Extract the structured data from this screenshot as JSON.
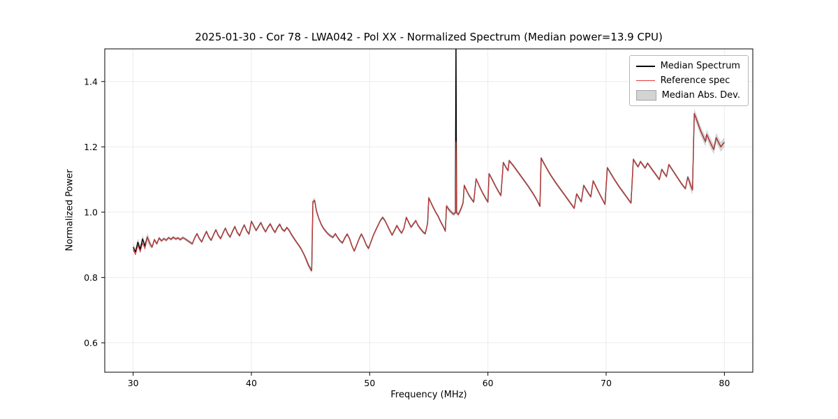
{
  "chart_data": {
    "type": "line",
    "title": "2025-01-30 - Cor 78 - LWA042 - Pol XX - Normalized Spectrum (Median power=13.9 CPU)",
    "xlabel": "Frequency (MHz)",
    "ylabel": "Normalized Power",
    "xlim": [
      27.6,
      82.4
    ],
    "ylim": [
      0.51,
      1.5
    ],
    "x_ticks": [
      30,
      40,
      50,
      60,
      70,
      80
    ],
    "x_tick_labels": [
      "30",
      "40",
      "50",
      "60",
      "70",
      "80"
    ],
    "y_ticks": [
      0.6,
      0.8,
      1.0,
      1.2,
      1.4
    ],
    "y_tick_labels": [
      "0.6",
      "0.8",
      "1.0",
      "1.2",
      "1.4"
    ],
    "grid": true,
    "legend": {
      "position": "upper right",
      "entries": [
        {
          "label": "Median Spectrum",
          "color": "#000000",
          "type": "line",
          "lw": 2
        },
        {
          "label": "Reference spec",
          "color": "#e03a3a",
          "type": "line",
          "lw": 1.5
        },
        {
          "label": "Median Abs. Dev.",
          "color": "#d3d3d3",
          "type": "patch",
          "lw": 0
        }
      ]
    },
    "series": {
      "median_points": [
        [
          30.0,
          0.893
        ],
        [
          30.2,
          0.878
        ],
        [
          30.4,
          0.908
        ],
        [
          30.6,
          0.886
        ],
        [
          30.8,
          0.918
        ],
        [
          31.0,
          0.896
        ],
        [
          31.2,
          0.924
        ],
        [
          31.4,
          0.905
        ],
        [
          31.6,
          0.893
        ],
        [
          31.8,
          0.916
        ],
        [
          32.0,
          0.903
        ],
        [
          32.2,
          0.921
        ],
        [
          32.4,
          0.912
        ],
        [
          32.6,
          0.919
        ],
        [
          32.8,
          0.914
        ],
        [
          33.0,
          0.922
        ],
        [
          33.2,
          0.917
        ],
        [
          33.4,
          0.923
        ],
        [
          33.6,
          0.918
        ],
        [
          33.8,
          0.921
        ],
        [
          34.0,
          0.916
        ],
        [
          34.2,
          0.922
        ],
        [
          34.4,
          0.918
        ],
        [
          34.6,
          0.913
        ],
        [
          34.8,
          0.908
        ],
        [
          35.0,
          0.903
        ],
        [
          35.2,
          0.921
        ],
        [
          35.4,
          0.934
        ],
        [
          35.6,
          0.919
        ],
        [
          35.8,
          0.909
        ],
        [
          36.0,
          0.926
        ],
        [
          36.2,
          0.941
        ],
        [
          36.4,
          0.924
        ],
        [
          36.6,
          0.914
        ],
        [
          36.8,
          0.931
        ],
        [
          37.0,
          0.946
        ],
        [
          37.2,
          0.929
        ],
        [
          37.4,
          0.919
        ],
        [
          37.6,
          0.936
        ],
        [
          37.8,
          0.951
        ],
        [
          38.0,
          0.934
        ],
        [
          38.2,
          0.924
        ],
        [
          38.4,
          0.941
        ],
        [
          38.6,
          0.956
        ],
        [
          38.8,
          0.938
        ],
        [
          39.0,
          0.928
        ],
        [
          39.2,
          0.946
        ],
        [
          39.4,
          0.961
        ],
        [
          39.6,
          0.943
        ],
        [
          39.8,
          0.933
        ],
        [
          40.0,
          0.972
        ],
        [
          40.2,
          0.958
        ],
        [
          40.4,
          0.944
        ],
        [
          40.6,
          0.956
        ],
        [
          40.8,
          0.968
        ],
        [
          41.0,
          0.952
        ],
        [
          41.2,
          0.94
        ],
        [
          41.4,
          0.954
        ],
        [
          41.6,
          0.964
        ],
        [
          41.8,
          0.949
        ],
        [
          42.0,
          0.938
        ],
        [
          42.2,
          0.953
        ],
        [
          42.4,
          0.963
        ],
        [
          42.6,
          0.948
        ],
        [
          42.8,
          0.942
        ],
        [
          43.0,
          0.953
        ],
        [
          43.2,
          0.944
        ],
        [
          43.4,
          0.931
        ],
        [
          43.6,
          0.92
        ],
        [
          43.8,
          0.909
        ],
        [
          44.0,
          0.899
        ],
        [
          44.2,
          0.888
        ],
        [
          44.4,
          0.874
        ],
        [
          44.6,
          0.858
        ],
        [
          44.8,
          0.84
        ],
        [
          45.0,
          0.826
        ],
        [
          45.1,
          0.821
        ],
        [
          45.2,
          1.032
        ],
        [
          45.35,
          1.036
        ],
        [
          45.5,
          1.004
        ],
        [
          45.7,
          0.981
        ],
        [
          45.9,
          0.963
        ],
        [
          46.1,
          0.95
        ],
        [
          46.3,
          0.941
        ],
        [
          46.5,
          0.933
        ],
        [
          46.7,
          0.927
        ],
        [
          46.9,
          0.923
        ],
        [
          47.1,
          0.934
        ],
        [
          47.3,
          0.922
        ],
        [
          47.5,
          0.912
        ],
        [
          47.7,
          0.906
        ],
        [
          47.9,
          0.921
        ],
        [
          48.1,
          0.933
        ],
        [
          48.3,
          0.919
        ],
        [
          48.5,
          0.897
        ],
        [
          48.7,
          0.881
        ],
        [
          48.9,
          0.899
        ],
        [
          49.1,
          0.918
        ],
        [
          49.3,
          0.933
        ],
        [
          49.5,
          0.919
        ],
        [
          49.7,
          0.901
        ],
        [
          49.9,
          0.889
        ],
        [
          50.1,
          0.908
        ],
        [
          50.3,
          0.928
        ],
        [
          50.5,
          0.944
        ],
        [
          50.7,
          0.959
        ],
        [
          50.9,
          0.974
        ],
        [
          51.1,
          0.984
        ],
        [
          51.3,
          0.974
        ],
        [
          51.5,
          0.959
        ],
        [
          51.7,
          0.944
        ],
        [
          51.9,
          0.93
        ],
        [
          52.1,
          0.944
        ],
        [
          52.3,
          0.959
        ],
        [
          52.5,
          0.946
        ],
        [
          52.7,
          0.936
        ],
        [
          52.9,
          0.951
        ],
        [
          53.1,
          0.984
        ],
        [
          53.3,
          0.969
        ],
        [
          53.5,
          0.954
        ],
        [
          53.7,
          0.964
        ],
        [
          53.9,
          0.974
        ],
        [
          54.1,
          0.959
        ],
        [
          54.3,
          0.949
        ],
        [
          54.5,
          0.94
        ],
        [
          54.7,
          0.934
        ],
        [
          54.9,
          0.966
        ],
        [
          55.0,
          1.044
        ],
        [
          55.2,
          1.028
        ],
        [
          55.4,
          1.013
        ],
        [
          55.6,
          0.999
        ],
        [
          55.8,
          0.987
        ],
        [
          56.0,
          0.971
        ],
        [
          56.2,
          0.958
        ],
        [
          56.4,
          0.942
        ],
        [
          56.5,
          1.019
        ],
        [
          56.7,
          1.008
        ],
        [
          56.9,
          1.0
        ],
        [
          57.1,
          0.994
        ],
        [
          57.25,
          0.998
        ],
        [
          57.3,
          1.55
        ],
        [
          57.35,
          0.998
        ],
        [
          57.5,
          0.993
        ],
        [
          57.7,
          1.008
        ],
        [
          57.9,
          1.028
        ],
        [
          58.0,
          1.082
        ],
        [
          58.2,
          1.066
        ],
        [
          58.4,
          1.052
        ],
        [
          58.6,
          1.041
        ],
        [
          58.8,
          1.031
        ],
        [
          59.0,
          1.102
        ],
        [
          59.2,
          1.086
        ],
        [
          59.4,
          1.07
        ],
        [
          59.6,
          1.056
        ],
        [
          59.8,
          1.043
        ],
        [
          60.0,
          1.031
        ],
        [
          60.1,
          1.118
        ],
        [
          60.3,
          1.104
        ],
        [
          60.5,
          1.09
        ],
        [
          60.7,
          1.076
        ],
        [
          60.9,
          1.063
        ],
        [
          61.1,
          1.051
        ],
        [
          61.3,
          1.152
        ],
        [
          61.5,
          1.139
        ],
        [
          61.7,
          1.127
        ],
        [
          61.8,
          1.158
        ],
        [
          62.0,
          1.149
        ],
        [
          62.2,
          1.14
        ],
        [
          62.4,
          1.13
        ],
        [
          62.6,
          1.12
        ],
        [
          62.8,
          1.11
        ],
        [
          63.0,
          1.1
        ],
        [
          63.2,
          1.09
        ],
        [
          63.4,
          1.08
        ],
        [
          63.6,
          1.069
        ],
        [
          63.8,
          1.058
        ],
        [
          64.0,
          1.046
        ],
        [
          64.2,
          1.033
        ],
        [
          64.4,
          1.018
        ],
        [
          64.5,
          1.166
        ],
        [
          64.7,
          1.152
        ],
        [
          64.9,
          1.139
        ],
        [
          65.1,
          1.126
        ],
        [
          65.3,
          1.114
        ],
        [
          65.5,
          1.103
        ],
        [
          65.7,
          1.092
        ],
        [
          65.9,
          1.082
        ],
        [
          66.1,
          1.072
        ],
        [
          66.3,
          1.062
        ],
        [
          66.5,
          1.052
        ],
        [
          66.7,
          1.042
        ],
        [
          66.9,
          1.032
        ],
        [
          67.1,
          1.022
        ],
        [
          67.3,
          1.012
        ],
        [
          67.5,
          1.056
        ],
        [
          67.7,
          1.044
        ],
        [
          67.9,
          1.032
        ],
        [
          68.1,
          1.082
        ],
        [
          68.3,
          1.07
        ],
        [
          68.5,
          1.058
        ],
        [
          68.7,
          1.047
        ],
        [
          68.9,
          1.096
        ],
        [
          69.1,
          1.081
        ],
        [
          69.3,
          1.066
        ],
        [
          69.5,
          1.052
        ],
        [
          69.7,
          1.038
        ],
        [
          69.9,
          1.024
        ],
        [
          70.1,
          1.136
        ],
        [
          70.3,
          1.124
        ],
        [
          70.5,
          1.112
        ],
        [
          70.7,
          1.1
        ],
        [
          70.9,
          1.089
        ],
        [
          71.1,
          1.078
        ],
        [
          71.3,
          1.068
        ],
        [
          71.5,
          1.058
        ],
        [
          71.7,
          1.048
        ],
        [
          71.9,
          1.038
        ],
        [
          72.1,
          1.028
        ],
        [
          72.3,
          1.162
        ],
        [
          72.5,
          1.15
        ],
        [
          72.7,
          1.139
        ],
        [
          72.9,
          1.155
        ],
        [
          73.1,
          1.145
        ],
        [
          73.3,
          1.135
        ],
        [
          73.5,
          1.15
        ],
        [
          73.7,
          1.14
        ],
        [
          73.9,
          1.13
        ],
        [
          74.1,
          1.12
        ],
        [
          74.3,
          1.11
        ],
        [
          74.5,
          1.1
        ],
        [
          74.7,
          1.131
        ],
        [
          74.9,
          1.12
        ],
        [
          75.1,
          1.109
        ],
        [
          75.3,
          1.146
        ],
        [
          75.5,
          1.135
        ],
        [
          75.7,
          1.124
        ],
        [
          75.9,
          1.113
        ],
        [
          76.1,
          1.102
        ],
        [
          76.3,
          1.091
        ],
        [
          76.5,
          1.081
        ],
        [
          76.7,
          1.072
        ],
        [
          76.9,
          1.108
        ],
        [
          77.1,
          1.086
        ],
        [
          77.3,
          1.068
        ],
        [
          77.45,
          1.302
        ],
        [
          77.6,
          1.288
        ],
        [
          77.8,
          1.268
        ],
        [
          78.0,
          1.248
        ],
        [
          78.2,
          1.232
        ],
        [
          78.4,
          1.216
        ],
        [
          78.5,
          1.238
        ],
        [
          78.7,
          1.222
        ],
        [
          78.9,
          1.206
        ],
        [
          79.1,
          1.192
        ],
        [
          79.3,
          1.228
        ],
        [
          79.5,
          1.214
        ],
        [
          79.7,
          1.2
        ],
        [
          79.9,
          1.21
        ],
        [
          80.0,
          1.214
        ]
      ],
      "reference_overrides": [
        [
          30.0,
          0.885
        ],
        [
          30.2,
          0.87
        ],
        [
          30.4,
          0.898
        ],
        [
          30.6,
          0.878
        ],
        [
          30.8,
          0.905
        ],
        [
          31.0,
          0.888
        ],
        [
          57.3,
          1.215
        ]
      ],
      "mad_default": 0.005,
      "mad_regions": [
        [
          30.0,
          31.5,
          0.012
        ],
        [
          44.5,
          45.6,
          0.008
        ],
        [
          56.5,
          58.0,
          0.007
        ],
        [
          77.0,
          80.0,
          0.015
        ]
      ]
    },
    "colors": {
      "median_line": "#000000",
      "reference_line": "#e03a3a",
      "mad_band": "#bfbfbf",
      "grid": "#ebebeb",
      "frame": "#000000"
    }
  }
}
